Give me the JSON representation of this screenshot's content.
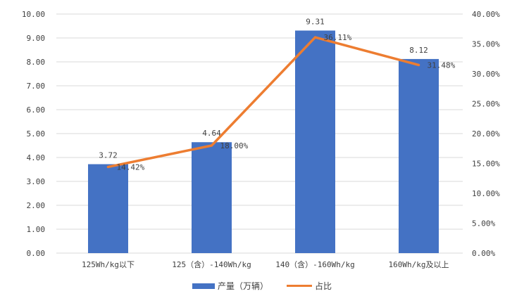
{
  "chart_data": {
    "type": "bar+line",
    "categories": [
      "125Wh/kg以下",
      "125（含）-140Wh/kg",
      "140（含）-160Wh/kg",
      "160Wh/kg及以上"
    ],
    "series": [
      {
        "name": "产量（万辆）",
        "type": "bar",
        "axis": "left",
        "values": [
          3.72,
          4.64,
          9.31,
          8.12
        ],
        "labels": [
          "3.72",
          "4.64",
          "9.31",
          "8.12"
        ],
        "color": "#4472C4"
      },
      {
        "name": "占比",
        "type": "line",
        "axis": "right",
        "values": [
          14.42,
          18.0,
          36.11,
          31.48
        ],
        "labels": [
          "14.42%",
          "18.00%",
          "36.11%",
          "31.48%"
        ],
        "color": "#ED7D31"
      }
    ],
    "left_axis": {
      "ylim": [
        0,
        10
      ],
      "ticks": [
        "0.00",
        "1.00",
        "2.00",
        "3.00",
        "4.00",
        "5.00",
        "6.00",
        "7.00",
        "8.00",
        "9.00",
        "10.00"
      ]
    },
    "right_axis": {
      "ylim": [
        0,
        40
      ],
      "ticks": [
        "0.00%",
        "5.00%",
        "10.00%",
        "15.00%",
        "20.00%",
        "25.00%",
        "30.00%",
        "35.00%",
        "40.00%"
      ]
    },
    "grid": true,
    "legend": "bottom"
  }
}
